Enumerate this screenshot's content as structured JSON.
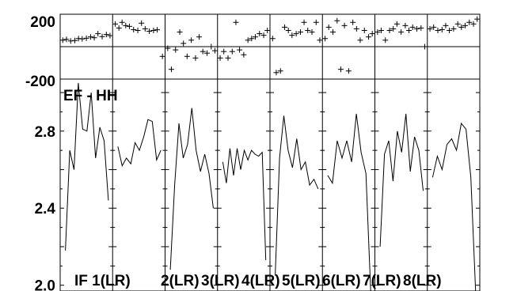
{
  "chart_data": {
    "type": "line",
    "title": "EF - HH",
    "top_panel": {
      "type": "scatter",
      "ylim": [
        -200,
        200
      ],
      "y_ticks": [
        "200",
        "-200"
      ],
      "points": [
        [
          [
            0.05,
            40
          ],
          [
            0.12,
            45
          ],
          [
            0.2,
            35
          ],
          [
            0.28,
            38
          ],
          [
            0.35,
            50
          ],
          [
            0.42,
            48
          ],
          [
            0.5,
            52
          ],
          [
            0.58,
            60
          ],
          [
            0.65,
            55
          ],
          [
            0.72,
            80
          ],
          [
            0.8,
            62
          ],
          [
            0.88,
            75
          ],
          [
            0.95,
            68
          ]
        ],
        [
          [
            0.05,
            140
          ],
          [
            0.12,
            115
          ],
          [
            0.18,
            150
          ],
          [
            0.25,
            130
          ],
          [
            0.32,
            125
          ],
          [
            0.4,
            105
          ],
          [
            0.48,
            100
          ],
          [
            0.55,
            145
          ],
          [
            0.62,
            110
          ],
          [
            0.7,
            95
          ],
          [
            0.78,
            100
          ],
          [
            0.85,
            104
          ],
          [
            0.95,
            -60
          ]
        ],
        [
          [
            0.05,
            -10
          ],
          [
            0.12,
            -140
          ],
          [
            0.2,
            -20
          ],
          [
            0.28,
            90
          ],
          [
            0.35,
            20
          ],
          [
            0.42,
            -60
          ],
          [
            0.5,
            40
          ],
          [
            0.58,
            -70
          ],
          [
            0.65,
            60
          ],
          [
            0.72,
            -30
          ],
          [
            0.8,
            -40
          ],
          [
            0.88,
            0
          ],
          [
            0.95,
            -25
          ]
        ],
        [
          [
            0.05,
            -70
          ],
          [
            0.12,
            -30
          ],
          [
            0.2,
            -70
          ],
          [
            0.28,
            -30
          ],
          [
            0.35,
            150
          ],
          [
            0.42,
            -20
          ],
          [
            0.5,
            -50
          ],
          [
            0.58,
            40
          ],
          [
            0.65,
            50
          ],
          [
            0.72,
            60
          ],
          [
            0.8,
            80
          ],
          [
            0.88,
            70
          ],
          [
            0.95,
            100
          ]
        ],
        [
          [
            0.05,
            50
          ],
          [
            0.12,
            -160
          ],
          [
            0.2,
            -150
          ],
          [
            0.28,
            120
          ],
          [
            0.35,
            100
          ],
          [
            0.42,
            70
          ],
          [
            0.5,
            80
          ],
          [
            0.58,
            90
          ],
          [
            0.65,
            150
          ],
          [
            0.72,
            100
          ],
          [
            0.8,
            90
          ],
          [
            0.88,
            150
          ],
          [
            0.95,
            40
          ]
        ],
        [
          [
            0.05,
            50
          ],
          [
            0.12,
            120
          ],
          [
            0.2,
            90
          ],
          [
            0.28,
            160
          ],
          [
            0.35,
            -140
          ],
          [
            0.42,
            130
          ],
          [
            0.5,
            -150
          ],
          [
            0.58,
            150
          ],
          [
            0.65,
            110
          ],
          [
            0.72,
            40
          ],
          [
            0.8,
            100
          ],
          [
            0.88,
            60
          ],
          [
            0.95,
            80
          ]
        ],
        [
          [
            0.05,
            90
          ],
          [
            0.12,
            100
          ],
          [
            0.2,
            40
          ],
          [
            0.28,
            100
          ],
          [
            0.35,
            110
          ],
          [
            0.42,
            140
          ],
          [
            0.5,
            90
          ],
          [
            0.58,
            130
          ],
          [
            0.65,
            100
          ],
          [
            0.72,
            120
          ],
          [
            0.8,
            110
          ],
          [
            0.88,
            115
          ],
          [
            0.95,
            0
          ]
        ],
        [
          [
            0.05,
            110
          ],
          [
            0.12,
            120
          ],
          [
            0.2,
            100
          ],
          [
            0.28,
            105
          ],
          [
            0.35,
            130
          ],
          [
            0.42,
            100
          ],
          [
            0.5,
            110
          ],
          [
            0.58,
            140
          ],
          [
            0.65,
            120
          ],
          [
            0.72,
            130
          ],
          [
            0.8,
            150
          ],
          [
            0.88,
            140
          ],
          [
            0.95,
            170
          ]
        ]
      ]
    },
    "bottom_panel": {
      "type": "line",
      "ylim": [
        1.97,
        3.07
      ],
      "y_ticks": [
        2.0,
        2.4,
        2.8
      ],
      "y_tick_labels": [
        "2.0",
        "2.4",
        "2.8"
      ],
      "series": [
        {
          "values": [
            2.18,
            2.7,
            2.6,
            3.05,
            2.81,
            2.8,
            3.0,
            2.66,
            2.82,
            2.75,
            2.44
          ]
        },
        {
          "values": [
            2.72,
            2.62,
            2.66,
            2.63,
            2.74,
            2.7,
            2.77,
            2.86,
            2.85,
            2.65,
            2.7
          ]
        },
        {
          "values": [
            2.08,
            2.52,
            2.84,
            2.66,
            2.73,
            2.92,
            2.7,
            2.59,
            2.68,
            2.58,
            2.4
          ]
        },
        {
          "values": [
            2.64,
            2.53,
            2.71,
            2.57,
            2.71,
            2.6,
            2.7,
            2.65,
            2.7,
            2.68,
            2.67,
            2.69,
            2.13
          ]
        },
        {
          "values": [
            2.05,
            2.66,
            2.88,
            2.7,
            2.61,
            2.76,
            2.6,
            2.64,
            2.52,
            2.55,
            2.5
          ]
        },
        {
          "values": [
            2.57,
            2.53,
            2.75,
            2.66,
            2.75,
            2.64,
            2.89,
            2.69,
            2.58,
            1.97
          ]
        },
        {
          "values": [
            2.2,
            2.68,
            2.75,
            2.54,
            2.8,
            2.69,
            2.89,
            2.59,
            2.77,
            2.7,
            2.49
          ]
        },
        {
          "values": [
            2.56,
            2.67,
            2.6,
            2.73,
            2.76,
            2.7,
            2.84,
            2.81,
            2.56,
            1.97
          ]
        }
      ]
    },
    "panel_labels": [
      "IF 1(LR)",
      "2(LR)",
      "3(LR)",
      "4(LR)",
      "5(LR)",
      "6(LR)",
      "7(LR)",
      "8(LR)"
    ]
  }
}
